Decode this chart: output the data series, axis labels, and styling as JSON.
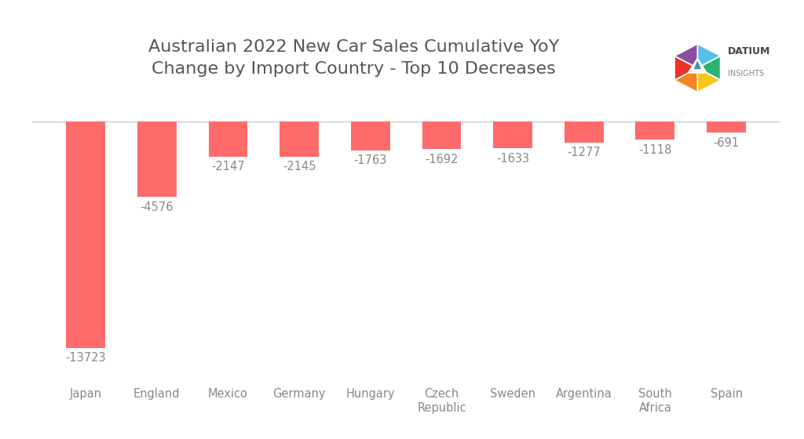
{
  "categories": [
    "Japan",
    "England",
    "Mexico",
    "Germany",
    "Hungary",
    "Czech\nRepublic",
    "Sweden",
    "Argentina",
    "South\nAfrica",
    "Spain"
  ],
  "values": [
    -13723,
    -4576,
    -2147,
    -2145,
    -1763,
    -1692,
    -1633,
    -1277,
    -1118,
    -691
  ],
  "bar_color": "#FF6B6B",
  "title_line1": "Australian 2022 New Car Sales Cumulative YoY",
  "title_line2": "Change by Import Country - Top 10 Decreases",
  "background_color": "#FFFFFF",
  "label_color": "#888888",
  "title_color": "#555555",
  "ylim": [
    -15500,
    1500
  ],
  "bar_width": 0.55,
  "title_fontsize": 16,
  "tick_fontsize": 10.5,
  "label_fontsize": 10.5
}
